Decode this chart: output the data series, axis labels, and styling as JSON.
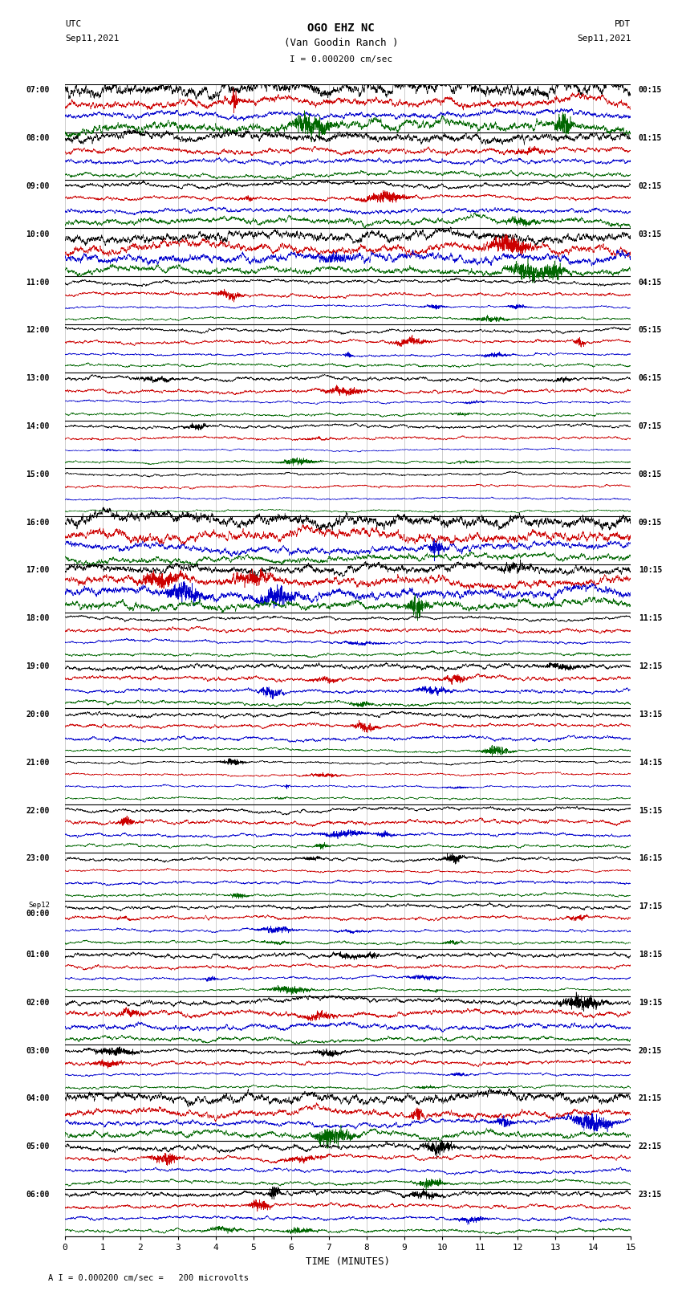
{
  "title_line1": "OGO EHZ NC",
  "title_line2": "(Van Goodin Ranch )",
  "scale_label": "I = 0.000200 cm/sec",
  "utc_label_1": "UTC",
  "utc_label_2": "Sep11,2021",
  "pdt_label_1": "PDT",
  "pdt_label_2": "Sep11,2021",
  "xlabel": "TIME (MINUTES)",
  "footnote": "A I = 0.000200 cm/sec =   200 microvolts",
  "left_times": [
    "07:00",
    "08:00",
    "09:00",
    "10:00",
    "11:00",
    "12:00",
    "13:00",
    "14:00",
    "15:00",
    "16:00",
    "17:00",
    "18:00",
    "19:00",
    "20:00",
    "21:00",
    "22:00",
    "23:00",
    "Sep12\n00:00",
    "01:00",
    "02:00",
    "03:00",
    "04:00",
    "05:00",
    "06:00"
  ],
  "right_times": [
    "00:15",
    "01:15",
    "02:15",
    "03:15",
    "04:15",
    "05:15",
    "06:15",
    "07:15",
    "08:15",
    "09:15",
    "10:15",
    "11:15",
    "12:15",
    "13:15",
    "14:15",
    "15:15",
    "16:15",
    "17:15",
    "18:15",
    "19:15",
    "20:15",
    "21:15",
    "22:15",
    "23:15"
  ],
  "n_rows": 24,
  "n_traces_per_row": 4,
  "trace_colors": [
    "#000000",
    "#cc0000",
    "#0000cc",
    "#006600"
  ],
  "background_color": "#ffffff",
  "grid_color": "#aaaaaa",
  "minutes": 15,
  "seed": 12345,
  "fig_width": 8.5,
  "fig_height": 16.13,
  "dpi": 100,
  "activity_map": [
    0.9,
    0.7,
    0.5,
    0.8,
    0.6,
    0.4,
    0.3,
    0.4,
    0.4,
    0.3,
    0.3,
    0.5,
    0.7,
    0.8,
    0.6,
    0.5,
    0.35,
    0.3,
    0.2,
    0.2,
    0.3,
    0.25,
    0.2,
    0.2,
    0.3,
    0.25,
    0.2,
    0.2,
    0.25,
    0.2,
    0.15,
    0.15,
    0.2,
    0.2,
    0.15,
    0.15,
    0.9,
    0.8,
    0.7,
    0.6,
    0.6,
    0.7,
    0.8,
    0.6,
    0.3,
    0.3,
    0.25,
    0.25,
    0.35,
    0.3,
    0.25,
    0.3,
    0.3,
    0.25,
    0.3,
    0.25,
    0.2,
    0.2,
    0.15,
    0.15,
    0.35,
    0.3,
    0.25,
    0.2,
    0.25,
    0.2,
    0.2,
    0.2,
    0.3,
    0.25,
    0.2,
    0.2,
    0.3,
    0.25,
    0.2,
    0.2,
    0.5,
    0.45,
    0.4,
    0.35,
    0.3,
    0.25,
    0.2,
    0.2,
    0.7,
    0.6,
    0.5,
    0.5,
    0.4,
    0.35,
    0.3,
    0.3,
    0.35,
    0.3,
    0.25,
    0.25
  ]
}
